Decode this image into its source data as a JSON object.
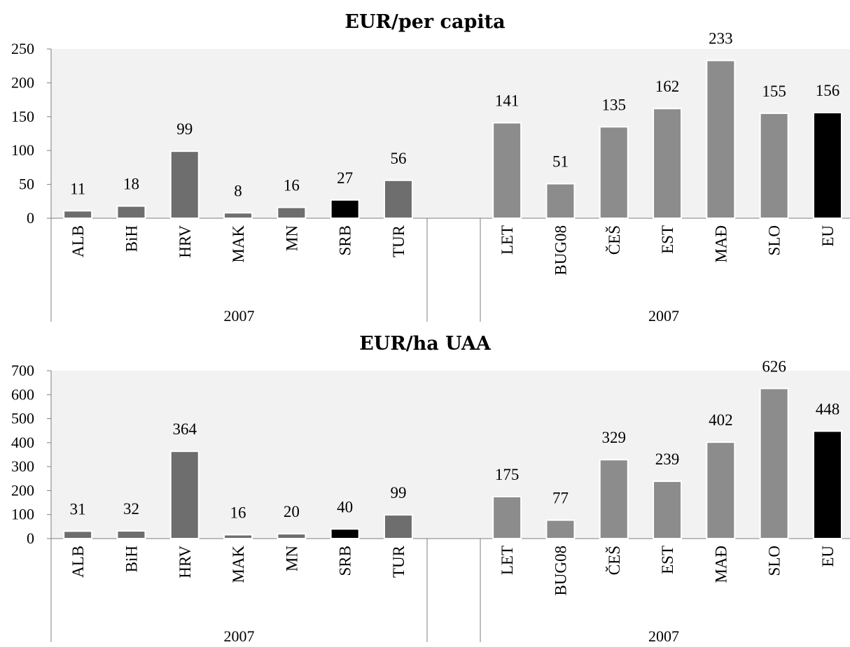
{
  "chart_data": [
    {
      "type": "bar",
      "title": "EUR/per capita",
      "ylim": [
        0,
        250
      ],
      "yticks": [
        0,
        50,
        100,
        150,
        200,
        250
      ],
      "groups": [
        {
          "label": "2007",
          "categories": [
            "ALB",
            "BiH",
            "HRV",
            "MAK",
            "MN",
            "SRB",
            "TUR"
          ],
          "values": [
            11,
            18,
            99,
            8,
            16,
            27,
            56
          ],
          "colors": [
            "#6e6e6e",
            "#6e6e6e",
            "#6e6e6e",
            "#6e6e6e",
            "#6e6e6e",
            "#000000",
            "#6e6e6e"
          ]
        },
        {
          "label": "2007",
          "categories": [
            "LET",
            "BUG08",
            "ČEŠ",
            "EST",
            "MAĐ",
            "SLO",
            "EU"
          ],
          "values": [
            141,
            51,
            135,
            162,
            233,
            155,
            156
          ],
          "colors": [
            "#8c8c8c",
            "#8c8c8c",
            "#8c8c8c",
            "#8c8c8c",
            "#8c8c8c",
            "#8c8c8c",
            "#000000"
          ]
        }
      ],
      "plot_background": "#f2f2f2",
      "grid": false,
      "legend": "none"
    },
    {
      "type": "bar",
      "title": "EUR/ha UAA",
      "ylim": [
        0,
        700
      ],
      "yticks": [
        0,
        100,
        200,
        300,
        400,
        500,
        600,
        700
      ],
      "groups": [
        {
          "label": "2007",
          "categories": [
            "ALB",
            "BiH",
            "HRV",
            "MAK",
            "MN",
            "SRB",
            "TUR"
          ],
          "values": [
            31,
            32,
            364,
            16,
            20,
            40,
            99
          ],
          "colors": [
            "#6e6e6e",
            "#6e6e6e",
            "#6e6e6e",
            "#6e6e6e",
            "#6e6e6e",
            "#000000",
            "#6e6e6e"
          ]
        },
        {
          "label": "2007",
          "categories": [
            "LET",
            "BUG08",
            "ČEŠ",
            "EST",
            "MAĐ",
            "SLO",
            "EU"
          ],
          "values": [
            175,
            77,
            329,
            239,
            402,
            626,
            448
          ],
          "colors": [
            "#8c8c8c",
            "#8c8c8c",
            "#8c8c8c",
            "#8c8c8c",
            "#8c8c8c",
            "#8c8c8c",
            "#000000"
          ]
        }
      ],
      "plot_background": "#f2f2f2",
      "grid": false,
      "legend": "none"
    }
  ]
}
